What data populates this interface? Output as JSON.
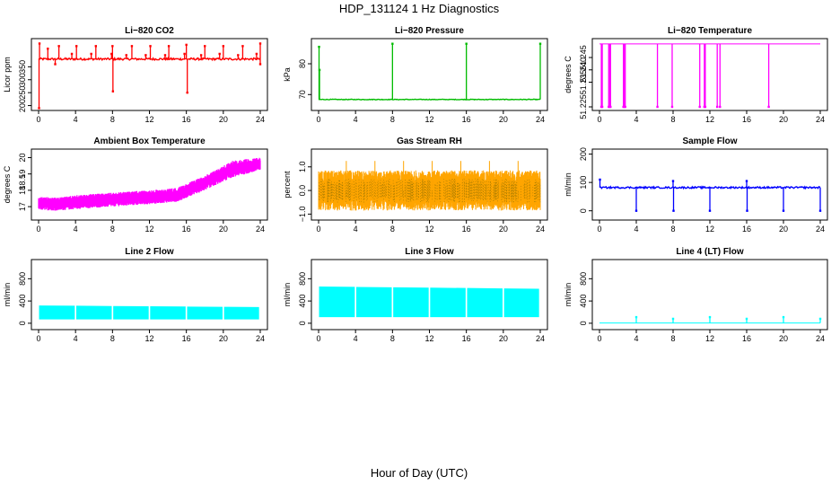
{
  "figure": {
    "title": "HDP_131124  1 Hz Diagnostics",
    "xlabel": "Hour of Day (UTC)"
  },
  "chart_data": [
    {
      "type": "line",
      "title": "Li−820 CO2",
      "ylabel": "Licor ppm",
      "xlim": [
        0,
        24
      ],
      "ylim": [
        195,
        445
      ],
      "xticks": [
        0,
        4,
        8,
        12,
        16,
        20,
        24
      ],
      "yticks": [
        200,
        250,
        300,
        350
      ],
      "color": "#ff0000",
      "baseline": 380,
      "noise": 4,
      "spikes": [
        {
          "x": 0.05,
          "y": 190
        },
        {
          "x": 0.1,
          "y": 440
        },
        {
          "x": 1.0,
          "y": 420
        },
        {
          "x": 1.8,
          "y": 360
        },
        {
          "x": 2.2,
          "y": 430
        },
        {
          "x": 3.6,
          "y": 400
        },
        {
          "x": 4.1,
          "y": 430
        },
        {
          "x": 5.7,
          "y": 400
        },
        {
          "x": 6.2,
          "y": 430
        },
        {
          "x": 7.9,
          "y": 400
        },
        {
          "x": 8.0,
          "y": 430
        },
        {
          "x": 8.05,
          "y": 255
        },
        {
          "x": 9.5,
          "y": 395
        },
        {
          "x": 10.1,
          "y": 430
        },
        {
          "x": 11.6,
          "y": 395
        },
        {
          "x": 12.1,
          "y": 430
        },
        {
          "x": 13.7,
          "y": 395
        },
        {
          "x": 14.1,
          "y": 430
        },
        {
          "x": 15.8,
          "y": 400
        },
        {
          "x": 16.0,
          "y": 435
        },
        {
          "x": 16.1,
          "y": 250
        },
        {
          "x": 17.6,
          "y": 395
        },
        {
          "x": 18.0,
          "y": 430
        },
        {
          "x": 19.6,
          "y": 400
        },
        {
          "x": 20.0,
          "y": 430
        },
        {
          "x": 21.6,
          "y": 395
        },
        {
          "x": 22.1,
          "y": 430
        },
        {
          "x": 23.6,
          "y": 400
        },
        {
          "x": 24.0,
          "y": 440
        },
        {
          "x": 24.0,
          "y": 360
        }
      ]
    },
    {
      "type": "line",
      "title": "Li−820 Pressure",
      "ylabel": "kPa",
      "xlim": [
        0,
        24
      ],
      "ylim": [
        66,
        87
      ],
      "xticks": [
        0,
        4,
        8,
        12,
        16,
        20,
        24
      ],
      "yticks": [
        70,
        80
      ],
      "color": "#00bb00",
      "baseline": 68.4,
      "noise": 0.1,
      "spikes": [
        {
          "x": 0.05,
          "y": 85.5
        },
        {
          "x": 0.1,
          "y": 78
        },
        {
          "x": 8.0,
          "y": 86.5
        },
        {
          "x": 16.0,
          "y": 86.5
        },
        {
          "x": 24.0,
          "y": 86.5
        }
      ]
    },
    {
      "type": "line",
      "title": "Li−820 Temperature",
      "ylabel": "degrees C",
      "xlim": [
        0,
        24
      ],
      "ylim": [
        51.225,
        51.2512
      ],
      "xticks": [
        0,
        4,
        8,
        12,
        16,
        20,
        24
      ],
      "yticks": [
        51.225,
        51.235,
        51.24,
        51.245
      ],
      "ytick_labels": [
        "51.225",
        "51.235",
        "51.240",
        "51.245"
      ],
      "color": "#ff00ff",
      "baseline": 51.2505,
      "noise": 0,
      "spikes": [
        {
          "x": 0.2,
          "y": 51.225
        },
        {
          "x": 0.3,
          "y": 51.225
        },
        {
          "x": 1.0,
          "y": 51.225
        },
        {
          "x": 1.1,
          "y": 51.225
        },
        {
          "x": 1.2,
          "y": 51.225
        },
        {
          "x": 2.6,
          "y": 51.225
        },
        {
          "x": 2.7,
          "y": 51.225
        },
        {
          "x": 2.8,
          "y": 51.225
        },
        {
          "x": 6.3,
          "y": 51.225
        },
        {
          "x": 7.9,
          "y": 51.225
        },
        {
          "x": 10.9,
          "y": 51.225
        },
        {
          "x": 11.4,
          "y": 51.225
        },
        {
          "x": 11.5,
          "y": 51.225
        },
        {
          "x": 12.8,
          "y": 51.225
        },
        {
          "x": 13.1,
          "y": 51.225
        },
        {
          "x": 18.4,
          "y": 51.225
        }
      ]
    },
    {
      "type": "line",
      "title": "Ambient Box Temperature",
      "ylabel": "degrees C",
      "xlim": [
        0,
        24
      ],
      "ylim": [
        16.4,
        20.3
      ],
      "xticks": [
        0,
        4,
        8,
        12,
        16,
        20,
        24
      ],
      "yticks": [
        17,
        18,
        19,
        20
      ],
      "ytick_labels": [
        "17",
        "18",
        "19",
        "20"
      ],
      "extra_ytick_labels": [
        {
          "y": 18.5,
          "label": "18.5"
        }
      ],
      "color": "#ff00ff",
      "band": [
        {
          "x": 0,
          "low": 16.8,
          "high": 17.6
        },
        {
          "x": 2,
          "low": 16.75,
          "high": 17.55
        },
        {
          "x": 4,
          "low": 16.85,
          "high": 17.7
        },
        {
          "x": 8,
          "low": 17.0,
          "high": 17.85
        },
        {
          "x": 12,
          "low": 17.15,
          "high": 18.0
        },
        {
          "x": 15,
          "low": 17.3,
          "high": 18.15
        },
        {
          "x": 18,
          "low": 18.0,
          "high": 18.9
        },
        {
          "x": 21,
          "low": 18.8,
          "high": 19.8
        },
        {
          "x": 24,
          "low": 19.2,
          "high": 20.0
        }
      ]
    },
    {
      "type": "line",
      "title": "Gas Stream RH",
      "ylabel": "percent",
      "xlim": [
        0,
        24
      ],
      "ylim": [
        -1.1,
        1.6
      ],
      "xticks": [
        0,
        4,
        8,
        12,
        16,
        20,
        24
      ],
      "yticks": [
        -1,
        0,
        1
      ],
      "ytick_labels": [
        "−1.0",
        "0.0",
        "1.0"
      ],
      "color": "#ffa500",
      "stroke2": "#a07800",
      "noise_center": 0.0,
      "noise_amplitude": 0.85,
      "noise_peak": 1.25
    },
    {
      "type": "line",
      "title": "Sample Flow",
      "ylabel": "ml/min",
      "xlim": [
        0,
        24
      ],
      "ylim": [
        -20,
        205
      ],
      "xticks": [
        0,
        4,
        8,
        12,
        16,
        20,
        24
      ],
      "yticks": [
        0,
        100,
        200
      ],
      "color": "#0000ff",
      "baseline": 82,
      "noise": 3,
      "spikes": [
        {
          "x": 0.05,
          "y": 110
        },
        {
          "x": 4.0,
          "y": 0
        },
        {
          "x": 8.0,
          "y": 105
        },
        {
          "x": 8.05,
          "y": 0
        },
        {
          "x": 12.0,
          "y": 0
        },
        {
          "x": 16.0,
          "y": 105
        },
        {
          "x": 16.05,
          "y": 0
        },
        {
          "x": 20.0,
          "y": 0
        },
        {
          "x": 24.0,
          "y": 0
        }
      ]
    },
    {
      "type": "area",
      "title": "Line 2 Flow",
      "ylabel": "ml/min",
      "xlim": [
        0,
        24
      ],
      "ylim": [
        -50,
        1080
      ],
      "xticks": [
        0,
        4,
        8,
        12,
        16,
        20,
        24
      ],
      "yticks": [
        0,
        400,
        800
      ],
      "color": "#00ffff",
      "low": 70,
      "high_start": 320,
      "high_end": 290,
      "gaps": [
        4,
        8,
        12,
        16,
        20
      ]
    },
    {
      "type": "area",
      "title": "Line 3 Flow",
      "ylabel": "ml/min",
      "xlim": [
        0,
        24
      ],
      "ylim": [
        -50,
        1080
      ],
      "xticks": [
        0,
        4,
        8,
        12,
        16,
        20,
        24
      ],
      "yticks": [
        0,
        400,
        800
      ],
      "color": "#00ffff",
      "low": 110,
      "high_start": 660,
      "high_end": 620,
      "gaps": [
        4,
        8,
        12,
        16,
        20
      ]
    },
    {
      "type": "line",
      "title": "Line 4 (LT) Flow",
      "ylabel": "ml/min",
      "xlim": [
        0,
        24
      ],
      "ylim": [
        -50,
        1080
      ],
      "xticks": [
        0,
        4,
        8,
        12,
        16,
        20,
        24
      ],
      "yticks": [
        0,
        400,
        800
      ],
      "color": "#00ffff",
      "baseline": 5,
      "noise": 0,
      "spikes": [
        {
          "x": 4.0,
          "y": 110
        },
        {
          "x": 8.0,
          "y": 80
        },
        {
          "x": 12.0,
          "y": 110
        },
        {
          "x": 16.0,
          "y": 80
        },
        {
          "x": 20.0,
          "y": 110
        },
        {
          "x": 24.0,
          "y": 80
        }
      ]
    }
  ]
}
